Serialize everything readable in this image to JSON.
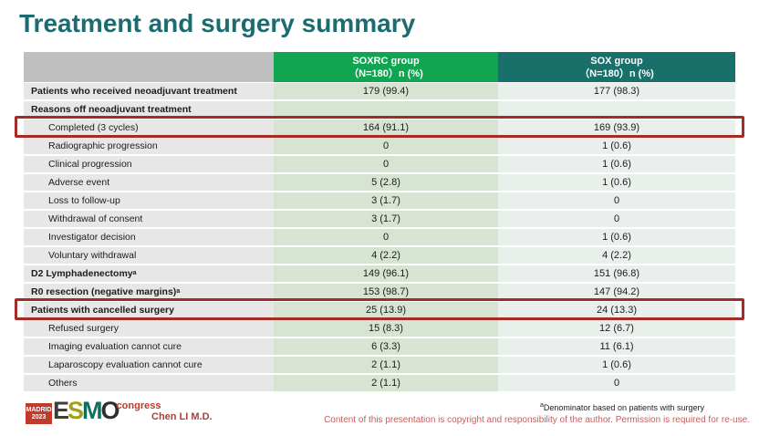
{
  "slide": {
    "title": "Treatment and surgery summary",
    "footer": {
      "author": "Chen LI M.D.",
      "footnote_sup": "a",
      "footnote": "Denominator based on patients with surgery",
      "copyright": "Content of this presentation is copyright and responsibility of the author. Permission is required for re-use.",
      "logo": {
        "city": "MADRID",
        "year": "2023",
        "org": "ESMO",
        "suffix": "congress"
      }
    }
  },
  "colors": {
    "title_teal": "#1b6b70",
    "header_green": "#0fa551",
    "header_teal": "#19706b",
    "header_gray": "#bfbfbf",
    "label_cell": "#e7e7e7",
    "soxrc_cell": "#d7e4d2",
    "sox_cell": "#e9efea",
    "highlight_red": "#a32c26",
    "author_red": "#a8423b",
    "copyright_pink": "#c4605c"
  },
  "table": {
    "columns": [
      {
        "name": "",
        "sub": ""
      },
      {
        "name": "SOXRC group",
        "sub": "（N=180）n (%)"
      },
      {
        "name": "SOX group",
        "sub": "（N=180）n (%)"
      }
    ],
    "rows": [
      {
        "label": "Patients who received neoadjuvant treatment",
        "bold": true,
        "indent": false,
        "highlight": false,
        "soxrc": "179 (99.4)",
        "sox": "177 (98.3)"
      },
      {
        "label": "Reasons off neoadjuvant treatment",
        "bold": true,
        "indent": false,
        "highlight": false,
        "soxrc": "",
        "sox": ""
      },
      {
        "label": "Completed (3 cycles)",
        "bold": false,
        "indent": true,
        "highlight": true,
        "soxrc": "164 (91.1)",
        "sox": "169 (93.9)"
      },
      {
        "label": "Radiographic progression",
        "bold": false,
        "indent": true,
        "highlight": false,
        "soxrc": "0",
        "sox": "1 (0.6)"
      },
      {
        "label": "Clinical progression",
        "bold": false,
        "indent": true,
        "highlight": false,
        "soxrc": "0",
        "sox": "1 (0.6)"
      },
      {
        "label": "Adverse event",
        "bold": false,
        "indent": true,
        "highlight": false,
        "soxrc": "5 (2.8)",
        "sox": "1 (0.6)"
      },
      {
        "label": "Loss to follow-up",
        "bold": false,
        "indent": true,
        "highlight": false,
        "soxrc": "3 (1.7)",
        "sox": "0"
      },
      {
        "label": "Withdrawal of consent",
        "bold": false,
        "indent": true,
        "highlight": false,
        "soxrc": "3 (1.7)",
        "sox": "0"
      },
      {
        "label": "Investigator decision",
        "bold": false,
        "indent": true,
        "highlight": false,
        "soxrc": "0",
        "sox": "1 (0.6)"
      },
      {
        "label": "Voluntary withdrawal",
        "bold": false,
        "indent": true,
        "highlight": false,
        "soxrc": "4 (2.2)",
        "sox": "4 (2.2)"
      },
      {
        "label": "D2 Lymphadenectomy",
        "sup": "a",
        "bold": true,
        "indent": false,
        "highlight": false,
        "soxrc": "149 (96.1)",
        "sox": "151 (96.8)"
      },
      {
        "label": "R0 resection (negative margins)",
        "sup": "a",
        "bold": true,
        "indent": false,
        "highlight": false,
        "soxrc": "153 (98.7)",
        "sox": "147 (94.2)"
      },
      {
        "label": "Patients with cancelled surgery",
        "bold": true,
        "indent": false,
        "highlight": true,
        "soxrc": "25 (13.9)",
        "sox": "24 (13.3)"
      },
      {
        "label": "Refused surgery",
        "bold": false,
        "indent": true,
        "highlight": false,
        "soxrc": "15 (8.3)",
        "sox": "12 (6.7)"
      },
      {
        "label": "Imaging evaluation cannot cure",
        "bold": false,
        "indent": true,
        "highlight": false,
        "soxrc": "6 (3.3)",
        "sox": "11 (6.1)"
      },
      {
        "label": "Laparoscopy evaluation cannot cure",
        "bold": false,
        "indent": true,
        "highlight": false,
        "soxrc": "2 (1.1)",
        "sox": "1 (0.6)"
      },
      {
        "label": "Others",
        "bold": false,
        "indent": true,
        "highlight": false,
        "soxrc": "2 (1.1)",
        "sox": "0"
      }
    ]
  }
}
